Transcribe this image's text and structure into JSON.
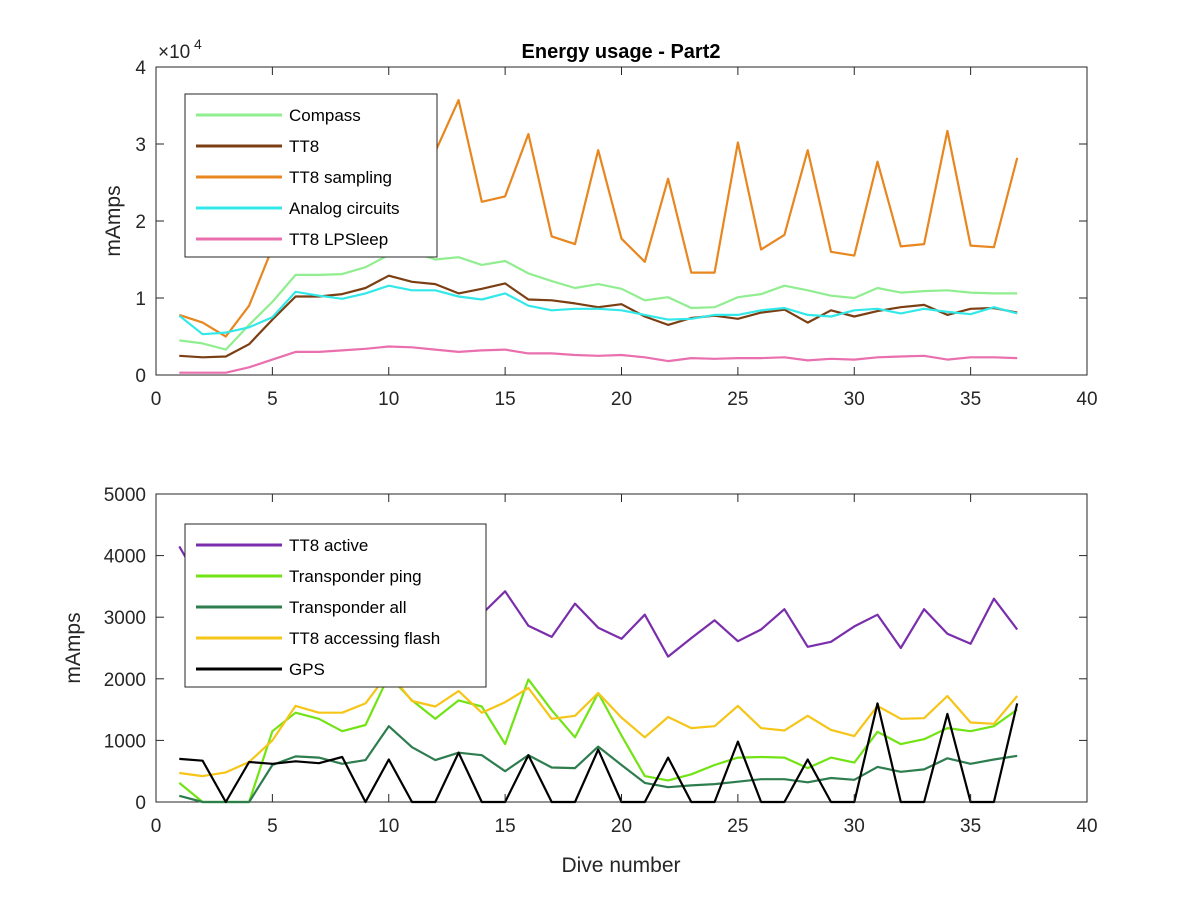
{
  "chart_data": [
    {
      "type": "line",
      "title": "Energy usage - Part2",
      "xlabel": "",
      "ylabel": "mAmps",
      "y_exponent_label": "×10",
      "y_exponent_power": "4",
      "xlim": [
        0,
        40
      ],
      "ylim": [
        0,
        4
      ],
      "x_ticks": [
        "0",
        "5",
        "10",
        "15",
        "20",
        "25",
        "30",
        "35",
        "40"
      ],
      "y_ticks": [
        "0",
        "1",
        "2",
        "3",
        "4"
      ],
      "grid": false,
      "legend_position": "top-left",
      "x": [
        1,
        2,
        3,
        4,
        5,
        6,
        7,
        8,
        9,
        10,
        11,
        12,
        13,
        14,
        15,
        16,
        17,
        18,
        19,
        20,
        21,
        22,
        23,
        24,
        25,
        26,
        27,
        28,
        29,
        30,
        31,
        32,
        33,
        34,
        35,
        36,
        37
      ],
      "series": [
        {
          "name": "Compass",
          "color": "#90ee90",
          "values": [
            0.45,
            0.41,
            0.33,
            0.65,
            0.95,
            1.3,
            1.3,
            1.31,
            1.4,
            1.56,
            1.6,
            1.5,
            1.53,
            1.43,
            1.48,
            1.32,
            1.22,
            1.13,
            1.18,
            1.12,
            0.97,
            1.01,
            0.87,
            0.88,
            1.01,
            1.05,
            1.16,
            1.1,
            1.03,
            1.0,
            1.13,
            1.07,
            1.09,
            1.1,
            1.07,
            1.06,
            1.06
          ]
        },
        {
          "name": "TT8",
          "color": "#7b3f13",
          "values": [
            0.25,
            0.23,
            0.24,
            0.4,
            0.72,
            1.02,
            1.02,
            1.05,
            1.13,
            1.29,
            1.21,
            1.18,
            1.06,
            1.12,
            1.19,
            0.98,
            0.97,
            0.93,
            0.88,
            0.92,
            0.76,
            0.65,
            0.74,
            0.77,
            0.73,
            0.81,
            0.85,
            0.68,
            0.84,
            0.76,
            0.83,
            0.88,
            0.91,
            0.78,
            0.86,
            0.87,
            0.81
          ]
        },
        {
          "name": "TT8 sampling",
          "color": "#e8861f",
          "values": [
            0.78,
            0.68,
            0.5,
            0.9,
            1.65,
            2.1,
            2.5,
            2.7,
            2.7,
            2.6,
            2.7,
            2.9,
            3.57,
            2.25,
            2.32,
            3.13,
            1.8,
            1.7,
            2.92,
            1.77,
            1.47,
            2.55,
            1.33,
            1.33,
            3.02,
            1.63,
            1.82,
            2.92,
            1.6,
            1.55,
            2.77,
            1.67,
            1.7,
            3.17,
            1.68,
            1.66,
            2.82
          ]
        },
        {
          "name": "Analog circuits",
          "color": "#33e8e8",
          "values": [
            0.77,
            0.53,
            0.55,
            0.62,
            0.75,
            1.08,
            1.03,
            0.99,
            1.06,
            1.16,
            1.1,
            1.1,
            1.02,
            0.98,
            1.06,
            0.9,
            0.84,
            0.86,
            0.86,
            0.84,
            0.78,
            0.72,
            0.73,
            0.78,
            0.78,
            0.84,
            0.87,
            0.78,
            0.76,
            0.84,
            0.86,
            0.8,
            0.86,
            0.82,
            0.79,
            0.88,
            0.8
          ]
        },
        {
          "name": "TT8 LPSleep",
          "color": "#e96fae",
          "values": [
            0.03,
            0.03,
            0.03,
            0.1,
            0.2,
            0.3,
            0.3,
            0.32,
            0.34,
            0.37,
            0.36,
            0.33,
            0.3,
            0.32,
            0.33,
            0.28,
            0.28,
            0.26,
            0.25,
            0.26,
            0.23,
            0.18,
            0.22,
            0.21,
            0.22,
            0.22,
            0.23,
            0.19,
            0.21,
            0.2,
            0.23,
            0.24,
            0.25,
            0.2,
            0.23,
            0.23,
            0.22
          ]
        }
      ]
    },
    {
      "type": "line",
      "title": "",
      "xlabel": "Dive number",
      "ylabel": "mAmps",
      "xlim": [
        0,
        40
      ],
      "ylim": [
        0,
        5000
      ],
      "x_ticks": [
        "0",
        "5",
        "10",
        "15",
        "20",
        "25",
        "30",
        "35",
        "40"
      ],
      "y_ticks": [
        "0",
        "1000",
        "2000",
        "3000",
        "4000",
        "5000"
      ],
      "grid": false,
      "legend_position": "top-left",
      "x": [
        1,
        2,
        3,
        4,
        5,
        6,
        7,
        8,
        9,
        10,
        11,
        12,
        13,
        14,
        15,
        16,
        17,
        18,
        19,
        20,
        21,
        22,
        23,
        24,
        25,
        26,
        27,
        28,
        29,
        30,
        31,
        32,
        33,
        34,
        35,
        36,
        37
      ],
      "series": [
        {
          "name": "TT8 active",
          "color": "#7a2eab",
          "values": [
            4150,
            3500,
            3200,
            3000,
            2950,
            3300,
            3450,
            3500,
            3550,
            3600,
            3400,
            3200,
            3150,
            3050,
            3420,
            2860,
            2680,
            3220,
            2830,
            2650,
            3040,
            2360,
            2660,
            2950,
            2610,
            2800,
            3130,
            2520,
            2600,
            2850,
            3040,
            2500,
            3130,
            2730,
            2570,
            3300,
            2800
          ]
        },
        {
          "name": "Transponder ping",
          "color": "#72e314",
          "values": [
            310,
            0,
            0,
            0,
            1150,
            1450,
            1350,
            1150,
            1250,
            2050,
            1650,
            1350,
            1650,
            1550,
            940,
            1990,
            1490,
            1050,
            1770,
            1080,
            420,
            350,
            450,
            600,
            720,
            730,
            720,
            550,
            720,
            640,
            1140,
            940,
            1020,
            1200,
            1150,
            1230,
            1500
          ]
        },
        {
          "name": "Transponder all",
          "color": "#2e7d4f",
          "values": [
            100,
            0,
            0,
            0,
            600,
            740,
            720,
            620,
            680,
            1230,
            890,
            680,
            800,
            760,
            500,
            760,
            560,
            550,
            900,
            600,
            310,
            240,
            270,
            290,
            330,
            370,
            370,
            320,
            390,
            360,
            570,
            490,
            530,
            710,
            620,
            690,
            750
          ]
        },
        {
          "name": "TT8 accessing flash",
          "color": "#f5c518",
          "values": [
            470,
            420,
            480,
            650,
            1000,
            1560,
            1450,
            1450,
            1600,
            2100,
            1640,
            1550,
            1800,
            1450,
            1620,
            1850,
            1350,
            1400,
            1770,
            1370,
            1050,
            1380,
            1200,
            1230,
            1560,
            1200,
            1160,
            1400,
            1170,
            1070,
            1560,
            1350,
            1360,
            1720,
            1290,
            1270,
            1720
          ]
        },
        {
          "name": "GPS",
          "color": "#000000",
          "values": [
            700,
            670,
            0,
            650,
            620,
            660,
            630,
            730,
            0,
            690,
            0,
            0,
            800,
            0,
            0,
            760,
            0,
            0,
            850,
            0,
            0,
            720,
            0,
            0,
            980,
            0,
            0,
            690,
            0,
            0,
            1600,
            0,
            0,
            1430,
            0,
            0,
            1600
          ]
        }
      ]
    }
  ]
}
